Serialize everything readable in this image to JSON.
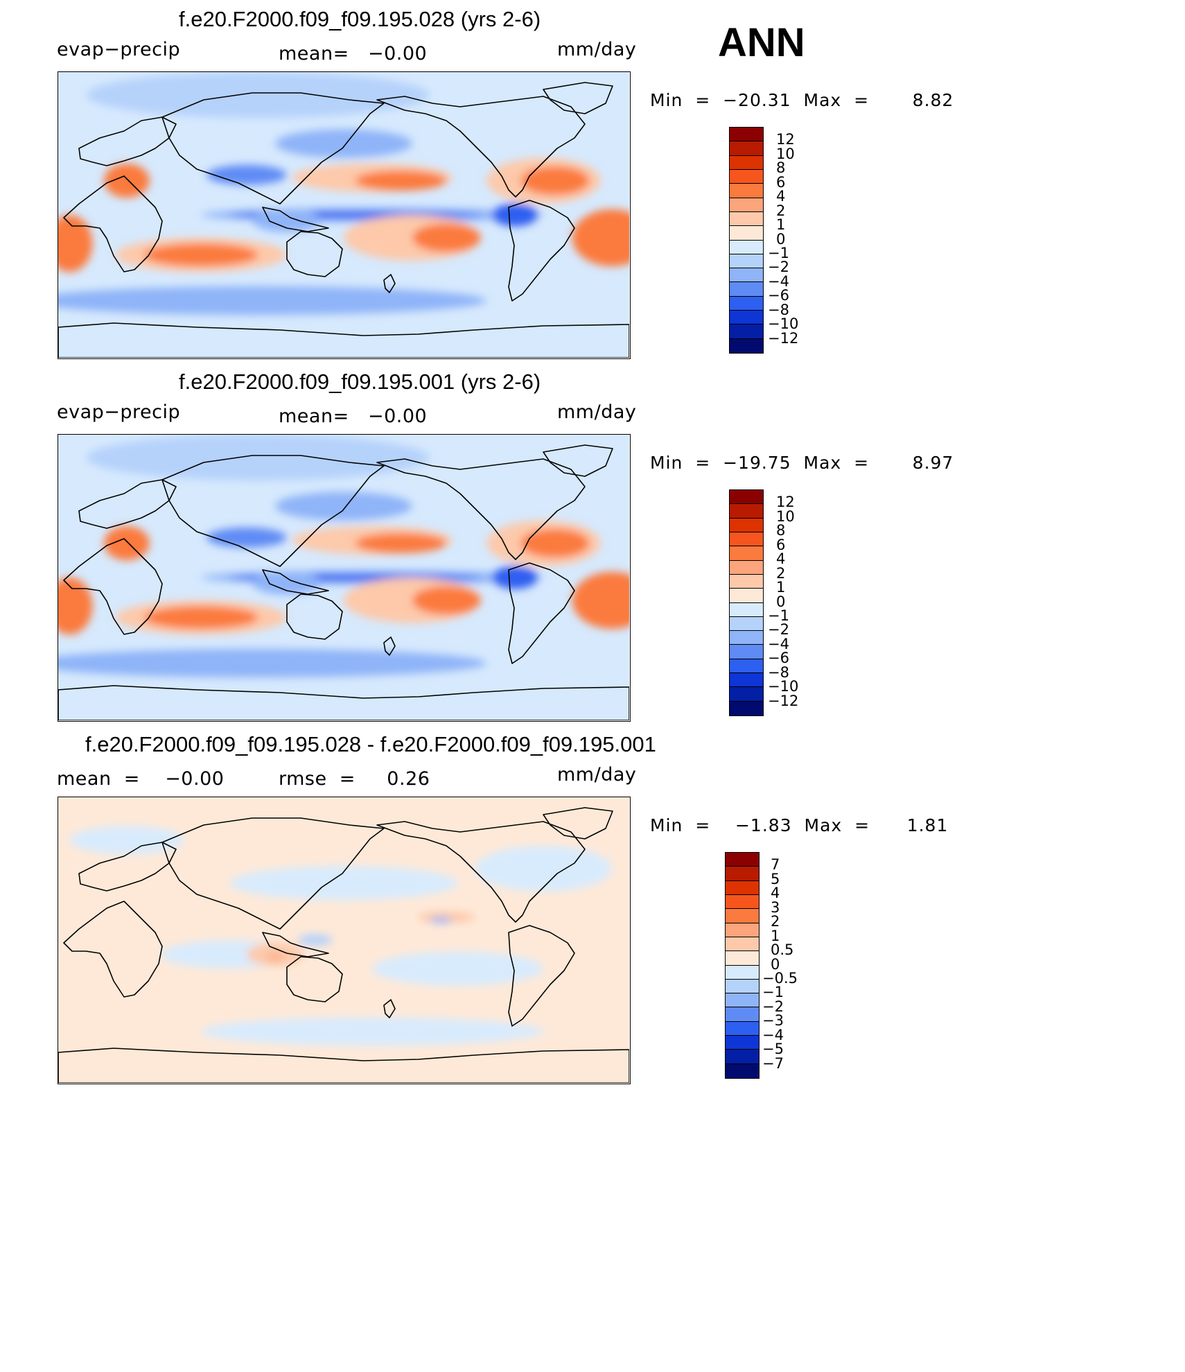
{
  "season_label": "ANN",
  "chart_data": [
    {
      "type": "heatmap",
      "title": "f.e20.F2000.f09_f09.195.028 (yrs 2-6)",
      "left_label": "evap−precip",
      "center_label": "mean=   −0.00",
      "units": "mm/day",
      "min_text": "Min  =  −20.31  Max  =       8.82",
      "min": -20.31,
      "max": 8.82,
      "mean": -0.0,
      "colorbar": {
        "levels": [
          "12",
          "10",
          "8",
          "6",
          "4",
          "2",
          "1",
          "0",
          "−1",
          "−2",
          "−4",
          "−6",
          "−8",
          "−10",
          "−12"
        ],
        "colors": [
          "#8b0000",
          "#b81b00",
          "#dd3300",
          "#f6561e",
          "#fb7a3e",
          "#fca47c",
          "#fdc9aa",
          "#fee9d8",
          "#d8ebfd",
          "#b5d2fb",
          "#8fb4f8",
          "#5f8bf4",
          "#2d5ff0",
          "#0e35d6",
          "#031fa6",
          "#010a6e"
        ]
      },
      "map": {
        "base": "#d6e9fd",
        "blobs": [
          {
            "c": "#b5d2fb",
            "x": 0.35,
            "y": 0.08,
            "rx": 0.3,
            "ry": 0.08
          },
          {
            "c": "#8fb4f8",
            "x": 0.5,
            "y": 0.25,
            "rx": 0.12,
            "ry": 0.05
          },
          {
            "c": "#fdc9aa",
            "x": 0.55,
            "y": 0.37,
            "rx": 0.14,
            "ry": 0.05
          },
          {
            "c": "#fb7a3e",
            "x": 0.6,
            "y": 0.38,
            "rx": 0.08,
            "ry": 0.035
          },
          {
            "c": "#8fb4f8",
            "x": 0.55,
            "y": 0.5,
            "rx": 0.3,
            "ry": 0.025
          },
          {
            "c": "#2d5ff0",
            "x": 0.52,
            "y": 0.5,
            "rx": 0.22,
            "ry": 0.012
          },
          {
            "c": "#fdc9aa",
            "x": 0.62,
            "y": 0.58,
            "rx": 0.12,
            "ry": 0.08
          },
          {
            "c": "#fb7a3e",
            "x": 0.68,
            "y": 0.58,
            "rx": 0.06,
            "ry": 0.05
          },
          {
            "c": "#fdc9aa",
            "x": 0.85,
            "y": 0.38,
            "rx": 0.1,
            "ry": 0.08
          },
          {
            "c": "#fb7a3e",
            "x": 0.87,
            "y": 0.38,
            "rx": 0.06,
            "ry": 0.05
          },
          {
            "c": "#fb7a3e",
            "x": 0.97,
            "y": 0.58,
            "rx": 0.07,
            "ry": 0.1
          },
          {
            "c": "#fdc9aa",
            "x": 0.25,
            "y": 0.64,
            "rx": 0.15,
            "ry": 0.06
          },
          {
            "c": "#fb7a3e",
            "x": 0.25,
            "y": 0.64,
            "rx": 0.1,
            "ry": 0.04
          },
          {
            "c": "#fb7a3e",
            "x": 0.02,
            "y": 0.6,
            "rx": 0.04,
            "ry": 0.1
          },
          {
            "c": "#8fb4f8",
            "x": 0.35,
            "y": 0.8,
            "rx": 0.4,
            "ry": 0.05
          },
          {
            "c": "#5f8bf4",
            "x": 0.33,
            "y": 0.36,
            "rx": 0.07,
            "ry": 0.035
          },
          {
            "c": "#2d5ff0",
            "x": 0.8,
            "y": 0.5,
            "rx": 0.04,
            "ry": 0.04
          },
          {
            "c": "#fb7a3e",
            "x": 0.12,
            "y": 0.38,
            "rx": 0.04,
            "ry": 0.06
          },
          {
            "c": "#8fb4f8",
            "x": 0.4,
            "y": 0.52,
            "rx": 0.06,
            "ry": 0.04
          }
        ]
      }
    },
    {
      "type": "heatmap",
      "title": "f.e20.F2000.f09_f09.195.001 (yrs 2-6)",
      "left_label": "evap−precip",
      "center_label": "mean=   −0.00",
      "units": "mm/day",
      "min_text": "Min  =  −19.75  Max  =       8.97",
      "min": -19.75,
      "max": 8.97,
      "mean": -0.0,
      "colorbar": {
        "levels": [
          "12",
          "10",
          "8",
          "6",
          "4",
          "2",
          "1",
          "0",
          "−1",
          "−2",
          "−4",
          "−6",
          "−8",
          "−10",
          "−12"
        ],
        "colors": [
          "#8b0000",
          "#b81b00",
          "#dd3300",
          "#f6561e",
          "#fb7a3e",
          "#fca47c",
          "#fdc9aa",
          "#fee9d8",
          "#d8ebfd",
          "#b5d2fb",
          "#8fb4f8",
          "#5f8bf4",
          "#2d5ff0",
          "#0e35d6",
          "#031fa6",
          "#010a6e"
        ]
      },
      "map": {
        "base": "#d6e9fd",
        "blobs": [
          {
            "c": "#b5d2fb",
            "x": 0.35,
            "y": 0.08,
            "rx": 0.3,
            "ry": 0.08
          },
          {
            "c": "#8fb4f8",
            "x": 0.5,
            "y": 0.25,
            "rx": 0.12,
            "ry": 0.05
          },
          {
            "c": "#fdc9aa",
            "x": 0.55,
            "y": 0.37,
            "rx": 0.14,
            "ry": 0.05
          },
          {
            "c": "#fb7a3e",
            "x": 0.6,
            "y": 0.38,
            "rx": 0.08,
            "ry": 0.035
          },
          {
            "c": "#8fb4f8",
            "x": 0.55,
            "y": 0.5,
            "rx": 0.3,
            "ry": 0.025
          },
          {
            "c": "#2d5ff0",
            "x": 0.52,
            "y": 0.5,
            "rx": 0.22,
            "ry": 0.012
          },
          {
            "c": "#fdc9aa",
            "x": 0.62,
            "y": 0.58,
            "rx": 0.12,
            "ry": 0.08
          },
          {
            "c": "#fb7a3e",
            "x": 0.68,
            "y": 0.58,
            "rx": 0.06,
            "ry": 0.05
          },
          {
            "c": "#fdc9aa",
            "x": 0.85,
            "y": 0.38,
            "rx": 0.1,
            "ry": 0.08
          },
          {
            "c": "#fb7a3e",
            "x": 0.87,
            "y": 0.38,
            "rx": 0.06,
            "ry": 0.05
          },
          {
            "c": "#fb7a3e",
            "x": 0.97,
            "y": 0.58,
            "rx": 0.07,
            "ry": 0.1
          },
          {
            "c": "#fdc9aa",
            "x": 0.25,
            "y": 0.64,
            "rx": 0.15,
            "ry": 0.06
          },
          {
            "c": "#fb7a3e",
            "x": 0.25,
            "y": 0.64,
            "rx": 0.1,
            "ry": 0.04
          },
          {
            "c": "#fb7a3e",
            "x": 0.02,
            "y": 0.6,
            "rx": 0.04,
            "ry": 0.1
          },
          {
            "c": "#8fb4f8",
            "x": 0.35,
            "y": 0.8,
            "rx": 0.4,
            "ry": 0.05
          },
          {
            "c": "#5f8bf4",
            "x": 0.33,
            "y": 0.36,
            "rx": 0.07,
            "ry": 0.035
          },
          {
            "c": "#2d5ff0",
            "x": 0.8,
            "y": 0.5,
            "rx": 0.04,
            "ry": 0.04
          },
          {
            "c": "#fb7a3e",
            "x": 0.12,
            "y": 0.38,
            "rx": 0.04,
            "ry": 0.06
          },
          {
            "c": "#8fb4f8",
            "x": 0.4,
            "y": 0.52,
            "rx": 0.06,
            "ry": 0.04
          }
        ]
      }
    },
    {
      "type": "heatmap",
      "title": "f.e20.F2000.f09_f09.195.028 - f.e20.F2000.f09_f09.195.001",
      "left_label": "mean  =    −0.00",
      "center_label": "rmse  =     0.26",
      "units": "mm/day",
      "min_text": "Min  =    −1.83  Max  =      1.81",
      "min": -1.83,
      "max": 1.81,
      "mean": -0.0,
      "rmse": 0.26,
      "colorbar": {
        "levels": [
          "7",
          "5",
          "4",
          "3",
          "2",
          "1",
          "0.5",
          "0",
          "−0.5",
          "−1",
          "−2",
          "−3",
          "−4",
          "−5",
          "−7"
        ],
        "colors": [
          "#8b0000",
          "#b81b00",
          "#dd3300",
          "#f6561e",
          "#fb7a3e",
          "#fca47c",
          "#fdc9aa",
          "#fee9d8",
          "#d8ebfd",
          "#b5d2fb",
          "#8fb4f8",
          "#5f8bf4",
          "#2d5ff0",
          "#0e35d6",
          "#031fa6",
          "#010a6e"
        ]
      },
      "map": {
        "base": "#fee9d8",
        "blobs": [
          {
            "c": "#d8ebfd",
            "x": 0.12,
            "y": 0.15,
            "rx": 0.1,
            "ry": 0.05
          },
          {
            "c": "#d8ebfd",
            "x": 0.5,
            "y": 0.3,
            "rx": 0.2,
            "ry": 0.06
          },
          {
            "c": "#d8ebfd",
            "x": 0.3,
            "y": 0.55,
            "rx": 0.12,
            "ry": 0.05
          },
          {
            "c": "#d8ebfd",
            "x": 0.7,
            "y": 0.6,
            "rx": 0.15,
            "ry": 0.06
          },
          {
            "c": "#d8ebfd",
            "x": 0.85,
            "y": 0.25,
            "rx": 0.12,
            "ry": 0.08
          },
          {
            "c": "#d8ebfd",
            "x": 0.55,
            "y": 0.82,
            "rx": 0.3,
            "ry": 0.05
          },
          {
            "c": "#fdc9aa",
            "x": 0.38,
            "y": 0.55,
            "rx": 0.05,
            "ry": 0.04
          },
          {
            "c": "#fdc9aa",
            "x": 0.68,
            "y": 0.42,
            "rx": 0.05,
            "ry": 0.02
          },
          {
            "c": "#b5d2fb",
            "x": 0.45,
            "y": 0.5,
            "rx": 0.03,
            "ry": 0.02
          },
          {
            "c": "#8fb4f8",
            "x": 0.67,
            "y": 0.43,
            "rx": 0.02,
            "ry": 0.01
          },
          {
            "c": "#fca47c",
            "x": 0.38,
            "y": 0.56,
            "rx": 0.015,
            "ry": 0.01
          }
        ]
      }
    }
  ]
}
